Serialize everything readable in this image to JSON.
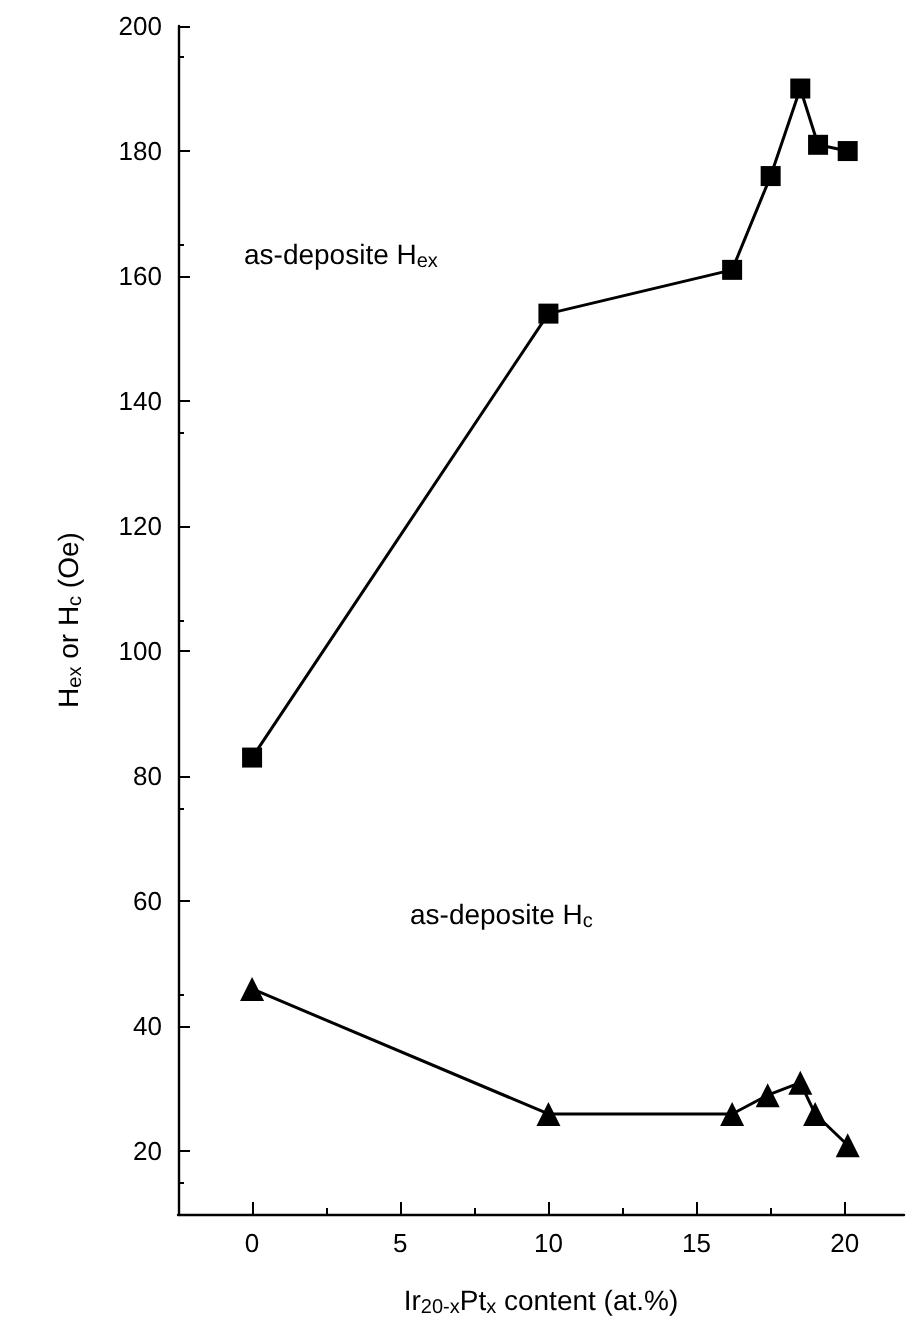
{
  "chart_data": {
    "type": "line",
    "xlabel": "Ir$_{20-x}$Pt$_{x}$ content (at.%)",
    "ylabel": "H$_{ex}$ or H$_{c}$ (Oe)",
    "annotations": [
      "as-deposite H$_{ex}$",
      "as-deposite H$_{c}$"
    ],
    "xlim": [
      -2.5,
      22
    ],
    "xticks": [
      0,
      5,
      10,
      15,
      20
    ],
    "ylim": [
      10,
      200
    ],
    "yticks": [
      20,
      40,
      60,
      80,
      100,
      120,
      140,
      160,
      180,
      200
    ],
    "grid": false,
    "line_style": "solid",
    "series": [
      {
        "color": "#000000",
        "marker": "square",
        "x": [
          0,
          10,
          16.2,
          17.5,
          18.5,
          19.1,
          20.1
        ],
        "values": [
          83,
          154,
          161,
          176,
          190,
          181,
          180
        ]
      },
      {
        "color": "#000000",
        "marker": "triangle",
        "x": [
          0,
          10,
          16.2,
          17.4,
          18.5,
          19.0,
          20.1
        ],
        "values": [
          46,
          26,
          26,
          29,
          31,
          26,
          21
        ]
      }
    ]
  }
}
